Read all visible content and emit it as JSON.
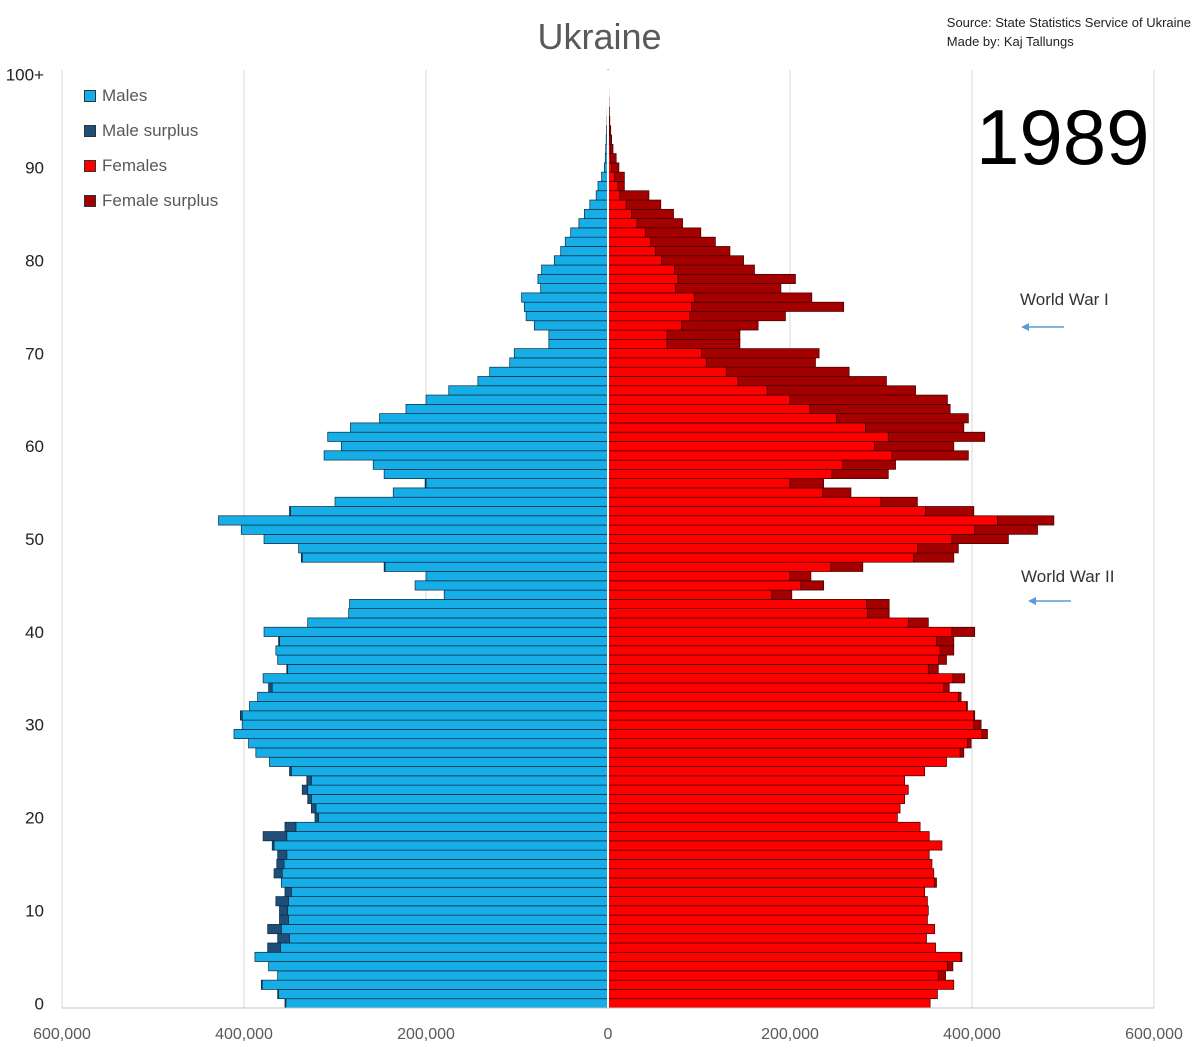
{
  "chart_data": {
    "type": "population-pyramid",
    "title": "Ukraine",
    "year": "1989",
    "source_lines": [
      "Source: State Statistics Service of Ukraine",
      "Made by: Kaj Tallungs"
    ],
    "x_ticks": [
      "600,000",
      "400,000",
      "200,000",
      "0",
      "200,000",
      "400,000",
      "600,000"
    ],
    "x_tick_values": [
      -600000,
      -400000,
      -200000,
      0,
      200000,
      400000,
      600000
    ],
    "y_ticks": [
      "0",
      "10",
      "20",
      "30",
      "40",
      "50",
      "60",
      "70",
      "80",
      "90",
      "100+"
    ],
    "y_tick_values": [
      0,
      10,
      20,
      30,
      40,
      50,
      60,
      70,
      80,
      90,
      100
    ],
    "xlim": [
      -600000,
      600000
    ],
    "ylim": [
      0,
      100
    ],
    "legend": [
      {
        "label": "Males",
        "color": "#17aee7"
      },
      {
        "label": "Male surplus",
        "color": "#1f4e79"
      },
      {
        "label": "Females",
        "color": "#ff0000"
      },
      {
        "label": "Female surplus",
        "color": "#a50000"
      }
    ],
    "annotations": [
      {
        "text": "World War I",
        "age": 73
      },
      {
        "text": "World War II",
        "age": 44
      }
    ],
    "ages": [
      0,
      1,
      2,
      3,
      4,
      5,
      6,
      7,
      8,
      9,
      10,
      11,
      12,
      13,
      14,
      15,
      16,
      17,
      18,
      19,
      20,
      21,
      22,
      23,
      24,
      25,
      26,
      27,
      28,
      29,
      30,
      31,
      32,
      33,
      34,
      35,
      36,
      37,
      38,
      39,
      40,
      41,
      42,
      43,
      44,
      45,
      46,
      47,
      48,
      49,
      50,
      51,
      52,
      53,
      54,
      55,
      56,
      57,
      58,
      59,
      60,
      61,
      62,
      63,
      64,
      65,
      66,
      67,
      68,
      69,
      70,
      71,
      72,
      73,
      74,
      75,
      76,
      77,
      78,
      79,
      80,
      81,
      82,
      83,
      84,
      85,
      86,
      87,
      88,
      89,
      90,
      91,
      92,
      93,
      94,
      95,
      96,
      97,
      98,
      99,
      100
    ],
    "males": [
      355000,
      363000,
      381000,
      363000,
      373000,
      388000,
      374000,
      363000,
      374000,
      361000,
      361000,
      365000,
      355000,
      359000,
      367000,
      364000,
      363000,
      369000,
      379000,
      355000,
      322000,
      326000,
      330000,
      336000,
      331000,
      350000,
      372000,
      387000,
      395000,
      411000,
      402000,
      404000,
      394000,
      385000,
      373000,
      379000,
      353000,
      363000,
      365000,
      362000,
      378000,
      330000,
      285000,
      284000,
      180000,
      212000,
      200000,
      246000,
      337000,
      340000,
      378000,
      403000,
      428000,
      350000,
      300000,
      236000,
      201000,
      246000,
      258000,
      312000,
      293000,
      308000,
      283000,
      251000,
      222000,
      200000,
      175000,
      143000,
      130000,
      108000,
      103000,
      65000,
      65000,
      81000,
      90000,
      92000,
      95000,
      74000,
      77000,
      73000,
      59000,
      52000,
      47000,
      41000,
      32000,
      26000,
      20000,
      13000,
      11000,
      7000,
      4000,
      3000,
      2500,
      2000,
      1500,
      1000,
      800,
      600,
      400,
      300,
      200
    ],
    "females": [
      354000,
      362000,
      380000,
      371000,
      379000,
      389000,
      360000,
      350000,
      359000,
      351000,
      352000,
      351000,
      348000,
      361000,
      358000,
      356000,
      353000,
      367000,
      353000,
      343000,
      318000,
      321000,
      326000,
      330000,
      326000,
      348000,
      372000,
      387000,
      395000,
      415000,
      406000,
      402000,
      395000,
      388000,
      369000,
      392000,
      352000,
      364000,
      366000,
      361000,
      379000,
      330000,
      285000,
      284000,
      180000,
      215000,
      200000,
      245000,
      336000,
      340000,
      379000,
      403000,
      429000,
      349000,
      301000,
      237000,
      200000,
      246000,
      258000,
      312000,
      293000,
      308000,
      283000,
      251000,
      222000,
      200000,
      175000,
      143000,
      130000,
      108000,
      103000,
      65000,
      65000,
      81000,
      90000,
      92000,
      95000,
      74000,
      77000,
      73000,
      59000,
      52000,
      47000,
      41000,
      32000,
      26000,
      20000,
      13000,
      11000,
      7000,
      4000,
      3000,
      2500,
      2000,
      1500,
      1000,
      800,
      600,
      400,
      300,
      200
    ],
    "female_bars_total": [
      354000,
      362000,
      380000,
      371000,
      379000,
      389000,
      360000,
      350000,
      359000,
      351000,
      352000,
      351000,
      348000,
      361000,
      358000,
      356000,
      353000,
      367000,
      353000,
      343000,
      318000,
      321000,
      326000,
      330000,
      326000,
      348000,
      372000,
      391000,
      399000,
      417000,
      410000,
      403000,
      395000,
      388000,
      375000,
      392000,
      363000,
      372000,
      380000,
      380000,
      403000,
      352000,
      309000,
      309000,
      202000,
      237000,
      223000,
      280000,
      380000,
      385000,
      440000,
      472000,
      490000,
      402000,
      340000,
      267000,
      237000,
      308000,
      316000,
      396000,
      380000,
      414000,
      391000,
      396000,
      376000,
      373000,
      338000,
      306000,
      265000,
      228000,
      232000,
      145000,
      145000,
      165000,
      195000,
      259000,
      224000,
      190000,
      206000,
      161000,
      149000,
      134000,
      118000,
      102000,
      82000,
      72000,
      58000,
      45000,
      18000,
      18000,
      12000,
      9000,
      5500,
      4000,
      3000,
      2000,
      1500,
      1000,
      800,
      600,
      400
    ],
    "male_bars_total": [
      355000,
      363000,
      381000,
      363000,
      373000,
      388000,
      374000,
      363000,
      374000,
      361000,
      361000,
      365000,
      355000,
      359000,
      367000,
      364000,
      363000,
      369000,
      379000,
      355000,
      322000,
      326000,
      330000,
      336000,
      331000,
      350000,
      372000,
      387000,
      395000,
      411000,
      402000,
      404000,
      394000,
      385000,
      373000,
      379000,
      353000,
      363000,
      365000,
      362000,
      378000,
      330000,
      285000,
      284000,
      180000,
      212000,
      200000,
      246000,
      337000,
      340000,
      378000,
      403000,
      428000,
      350000,
      300000,
      236000,
      201000,
      246000,
      258000,
      312000,
      293000,
      308000,
      283000,
      251000,
      222000,
      200000,
      175000,
      143000,
      130000,
      108000,
      103000,
      65000,
      65000,
      81000,
      90000,
      92000,
      95000,
      74000,
      77000,
      73000,
      59000,
      52000,
      47000,
      41000,
      32000,
      26000,
      20000,
      13000,
      11000,
      7000,
      4000,
      3000,
      2500,
      2000,
      1500,
      1000,
      800,
      600,
      400,
      300,
      200
    ]
  }
}
